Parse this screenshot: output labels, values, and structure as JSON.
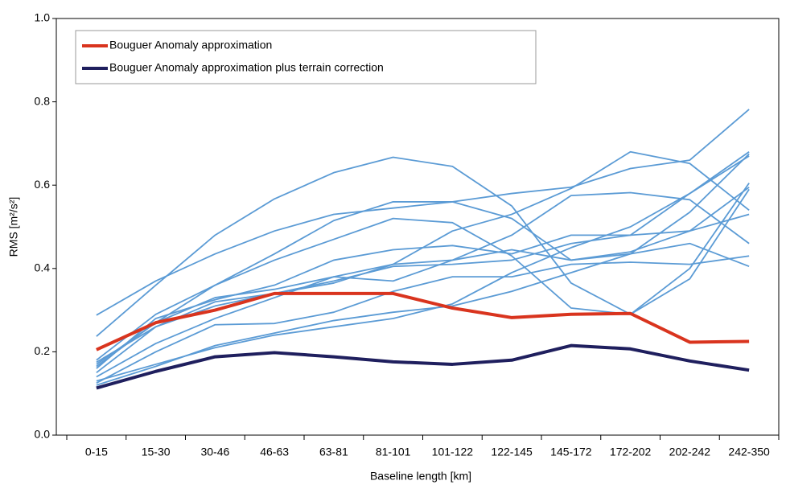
{
  "chart_data": {
    "type": "line",
    "x_label": "Baseline length [km]",
    "y_label": "RMS [m²/s²]",
    "categories": [
      "0-15",
      "15-30",
      "30-46",
      "46-63",
      "63-81",
      "81-101",
      "101-122",
      "122-145",
      "145-172",
      "172-202",
      "202-242",
      "242-350"
    ],
    "ylim": [
      0,
      1
    ],
    "yticks": [
      {
        "value": 0,
        "label": "0.0"
      },
      0.2,
      0.4,
      0.6,
      0.8,
      {
        "value": 1,
        "label": "1.0"
      }
    ],
    "legend": "top-left",
    "series": [
      {
        "color": "#5b9bd5",
        "values": [
          0.288,
          0.37,
          0.435,
          0.49,
          0.53,
          0.545,
          0.56,
          0.58,
          0.595,
          0.64,
          0.66,
          0.782
        ]
      },
      {
        "color": "#5b9bd5",
        "values": [
          0.237,
          0.36,
          0.48,
          0.567,
          0.63,
          0.667,
          0.645,
          0.55,
          0.365,
          0.29,
          0.4,
          0.605
        ]
      },
      {
        "color": "#5b9bd5",
        "values": [
          0.18,
          0.29,
          0.36,
          0.42,
          0.47,
          0.52,
          0.51,
          0.43,
          0.305,
          0.29,
          0.375,
          0.59
        ]
      },
      {
        "color": "#5b9bd5",
        "values": [
          0.17,
          0.27,
          0.36,
          0.435,
          0.515,
          0.56,
          0.56,
          0.52,
          0.42,
          0.44,
          0.49,
          0.595
        ]
      },
      {
        "color": "#5b9bd5",
        "values": [
          0.16,
          0.28,
          0.325,
          0.36,
          0.42,
          0.445,
          0.455,
          0.435,
          0.48,
          0.48,
          0.49,
          0.53
        ]
      },
      {
        "color": "#5b9bd5",
        "values": [
          0.15,
          0.26,
          0.32,
          0.34,
          0.37,
          0.405,
          0.41,
          0.42,
          0.46,
          0.48,
          0.58,
          0.68
        ]
      },
      {
        "color": "#5b9bd5",
        "values": [
          0.14,
          0.22,
          0.28,
          0.33,
          0.38,
          0.41,
          0.42,
          0.445,
          0.42,
          0.435,
          0.46,
          0.405
        ]
      },
      {
        "color": "#5b9bd5",
        "values": [
          0.125,
          0.2,
          0.265,
          0.268,
          0.295,
          0.345,
          0.38,
          0.38,
          0.41,
          0.415,
          0.41,
          0.43
        ]
      },
      {
        "color": "#5b9bd5",
        "values": [
          0.165,
          0.27,
          0.33,
          0.35,
          0.38,
          0.37,
          0.42,
          0.48,
          0.575,
          0.582,
          0.565,
          0.46
        ]
      },
      {
        "color": "#5b9bd5",
        "values": [
          0.12,
          0.165,
          0.215,
          0.245,
          0.275,
          0.295,
          0.31,
          0.345,
          0.39,
          0.435,
          0.535,
          0.675
        ]
      },
      {
        "color": "#5b9bd5",
        "values": [
          0.13,
          0.17,
          0.21,
          0.24,
          0.26,
          0.28,
          0.315,
          0.39,
          0.45,
          0.5,
          0.58,
          0.67
        ]
      },
      {
        "color": "#5b9bd5",
        "values": [
          0.175,
          0.26,
          0.31,
          0.34,
          0.365,
          0.41,
          0.49,
          0.53,
          0.592,
          0.68,
          0.652,
          0.54
        ]
      },
      {
        "name": "Bouguer Anomaly approximation",
        "color": "#d9341e",
        "values": [
          0.205,
          0.27,
          0.3,
          0.34,
          0.34,
          0.34,
          0.305,
          0.282,
          0.29,
          0.292,
          0.223,
          0.225
        ]
      },
      {
        "name": "Bouguer Anomaly approximation plus terrain correction",
        "color": "#1f1f5e",
        "values": [
          0.113,
          0.153,
          0.188,
          0.198,
          0.188,
          0.176,
          0.17,
          0.18,
          0.215,
          0.207,
          0.178,
          0.156
        ]
      }
    ]
  }
}
